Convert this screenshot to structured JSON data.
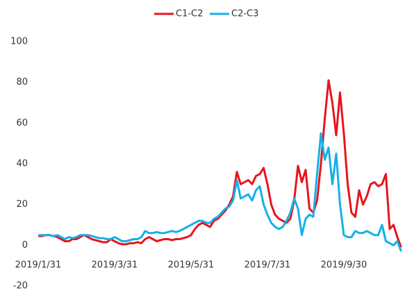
{
  "chart_data": {
    "type": "line",
    "categories": [
      "2019/1/31",
      null,
      null,
      null,
      null,
      null,
      null,
      null,
      null,
      null,
      null,
      null,
      null,
      null,
      null,
      null,
      null,
      null,
      null,
      null,
      "2019/3/31",
      null,
      null,
      null,
      null,
      null,
      null,
      null,
      null,
      null,
      null,
      null,
      null,
      null,
      null,
      null,
      null,
      null,
      null,
      null,
      "2019/5/31",
      null,
      null,
      null,
      null,
      null,
      null,
      null,
      null,
      null,
      null,
      null,
      null,
      null,
      null,
      null,
      null,
      null,
      null,
      null,
      "2019/7/31",
      null,
      null,
      null,
      null,
      null,
      null,
      null,
      null,
      null,
      null,
      null,
      null,
      null,
      null,
      null,
      null,
      null,
      null,
      null,
      "2019/9/30",
      null,
      null,
      null,
      null,
      null,
      null,
      null,
      null,
      null,
      null,
      null,
      null,
      null,
      null,
      null
    ],
    "series": [
      {
        "name": "C1-C2",
        "color": "#e8141c",
        "values": [
          4.5,
          4.5,
          5,
          5,
          4.5,
          4,
          3,
          2,
          2,
          3,
          3,
          4,
          5,
          4,
          3,
          2.5,
          2,
          1.5,
          1.5,
          3,
          2,
          1,
          0.5,
          0.5,
          1,
          1,
          1.5,
          1,
          3,
          4,
          3,
          2,
          2.5,
          3,
          3,
          2.5,
          3,
          3,
          3.5,
          4,
          5,
          8,
          10,
          11,
          10,
          9,
          12,
          13,
          15,
          17,
          20,
          24,
          36,
          30,
          31,
          32,
          30,
          34,
          35,
          38,
          30,
          20,
          15,
          13,
          12,
          11,
          13,
          22,
          39,
          31,
          37,
          18,
          16,
          22,
          40,
          62,
          81,
          70,
          54,
          75,
          55,
          30,
          16,
          14,
          27,
          20,
          24,
          30,
          31,
          29,
          30,
          35,
          8,
          10,
          4,
          -1
        ]
      },
      {
        "name": "C2-C3",
        "color": "#14b0e8",
        "values": [
          5,
          5,
          5,
          5,
          4.5,
          5,
          4,
          3,
          4,
          3.5,
          4,
          5,
          5,
          5,
          4.5,
          4,
          3.5,
          3.5,
          3,
          3,
          4,
          3,
          2,
          2,
          2.5,
          3,
          3,
          4,
          7,
          6,
          6,
          6.5,
          6,
          6,
          6.5,
          7,
          6.5,
          7,
          8,
          9,
          10,
          11,
          12,
          12,
          11,
          11,
          13,
          14,
          16,
          18,
          19,
          22,
          32,
          23,
          24,
          25,
          22,
          27,
          29,
          20,
          15,
          11,
          9,
          8,
          9,
          12,
          16,
          23,
          18,
          5,
          13,
          15,
          14,
          35,
          55,
          42,
          48,
          30,
          45,
          20,
          5,
          4,
          4,
          7,
          6,
          6,
          7,
          6,
          5,
          5,
          10,
          2,
          1,
          0,
          2,
          -3
        ]
      }
    ],
    "ylim": [
      -20,
      100
    ],
    "yticks": [
      -20,
      0,
      20,
      40,
      60,
      80,
      100
    ],
    "grid": false,
    "legend": "top"
  }
}
